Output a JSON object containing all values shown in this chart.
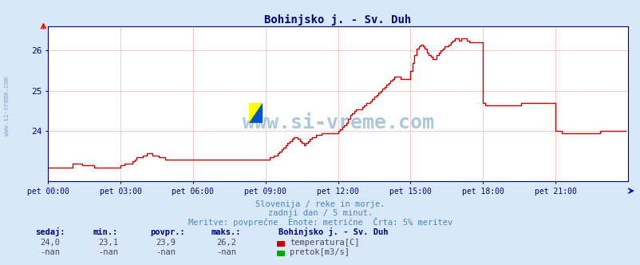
{
  "title": "Bohinjsko j. - Sv. Duh",
  "title_color": "#000080",
  "bg_color": "#d8e8f8",
  "plot_bg_color": "#ffffff",
  "grid_color": "#ffb0b0",
  "axis_color": "#000080",
  "watermark": "www.si-vreme.com",
  "watermark_color": "#3377aa",
  "watermark_alpha": 0.4,
  "xlim": [
    0,
    288
  ],
  "ylim": [
    22.75,
    26.6
  ],
  "yticks": [
    24.0,
    25.0,
    26.0
  ],
  "xtick_labels": [
    "pet 00:00",
    "pet 03:00",
    "pet 06:00",
    "pet 09:00",
    "pet 12:00",
    "pet 15:00",
    "pet 18:00",
    "pet 21:00"
  ],
  "xtick_positions": [
    0,
    36,
    72,
    108,
    144,
    180,
    216,
    252
  ],
  "line_color": "#cc0000",
  "line_width": 1.0,
  "footer_line1": "Slovenija / reke in morje.",
  "footer_line2": "zadnji dan / 5 minut.",
  "footer_line3": "Meritve: povprečne  Enote: metrične  Črta: 5% meritev",
  "footer_color": "#4488bb",
  "table_header": [
    "sedaj:",
    "min.:",
    "povpr.:",
    "maks.:"
  ],
  "table_values": [
    "24,0",
    "23,1",
    "23,9",
    "26,2"
  ],
  "table_nan": [
    "-nan",
    "-nan",
    "-nan",
    "-nan"
  ],
  "station_label": "Bohinjsko j. - Sv. Duh",
  "legend_temp": "temperatura[C]",
  "legend_flow": "pretok[m3/s]",
  "legend_temp_color": "#cc0000",
  "legend_flow_color": "#00aa00",
  "sidebar_color": "#4488bb",
  "sidebar_text": "www.si-vreme.com",
  "temp_data": [
    23.1,
    23.1,
    23.1,
    23.1,
    23.1,
    23.1,
    23.1,
    23.1,
    23.1,
    23.1,
    23.1,
    23.1,
    23.2,
    23.2,
    23.2,
    23.2,
    23.2,
    23.15,
    23.15,
    23.15,
    23.15,
    23.15,
    23.15,
    23.1,
    23.1,
    23.1,
    23.1,
    23.1,
    23.1,
    23.1,
    23.1,
    23.1,
    23.1,
    23.1,
    23.1,
    23.1,
    23.15,
    23.15,
    23.2,
    23.2,
    23.2,
    23.2,
    23.25,
    23.3,
    23.35,
    23.35,
    23.35,
    23.4,
    23.4,
    23.45,
    23.45,
    23.45,
    23.4,
    23.4,
    23.4,
    23.35,
    23.35,
    23.35,
    23.3,
    23.3,
    23.3,
    23.3,
    23.3,
    23.3,
    23.3,
    23.3,
    23.3,
    23.3,
    23.3,
    23.3,
    23.3,
    23.3,
    23.3,
    23.3,
    23.3,
    23.3,
    23.3,
    23.3,
    23.3,
    23.3,
    23.3,
    23.3,
    23.3,
    23.3,
    23.3,
    23.3,
    23.3,
    23.3,
    23.3,
    23.3,
    23.3,
    23.3,
    23.3,
    23.3,
    23.3,
    23.3,
    23.3,
    23.3,
    23.3,
    23.3,
    23.3,
    23.3,
    23.3,
    23.3,
    23.3,
    23.3,
    23.3,
    23.3,
    23.3,
    23.3,
    23.35,
    23.35,
    23.4,
    23.4,
    23.45,
    23.5,
    23.55,
    23.6,
    23.65,
    23.7,
    23.75,
    23.8,
    23.85,
    23.85,
    23.8,
    23.75,
    23.7,
    23.65,
    23.7,
    23.75,
    23.8,
    23.85,
    23.85,
    23.9,
    23.9,
    23.9,
    23.95,
    23.95,
    23.95,
    23.95,
    23.95,
    23.95,
    23.95,
    23.95,
    24.0,
    24.05,
    24.1,
    24.15,
    24.2,
    24.3,
    24.4,
    24.45,
    24.5,
    24.55,
    24.55,
    24.55,
    24.6,
    24.65,
    24.7,
    24.7,
    24.75,
    24.8,
    24.85,
    24.9,
    24.95,
    25.0,
    25.05,
    25.1,
    25.15,
    25.2,
    25.25,
    25.3,
    25.35,
    25.35,
    25.35,
    25.3,
    25.3,
    25.3,
    25.3,
    25.3,
    25.5,
    25.7,
    25.9,
    26.05,
    26.1,
    26.15,
    26.1,
    26.05,
    25.95,
    25.9,
    25.85,
    25.8,
    25.8,
    25.9,
    25.95,
    26.0,
    26.05,
    26.1,
    26.1,
    26.15,
    26.2,
    26.25,
    26.3,
    26.3,
    26.25,
    26.3,
    26.3,
    26.3,
    26.25,
    26.2,
    26.2,
    26.2,
    26.2,
    26.2,
    26.2,
    26.2,
    24.7,
    24.65,
    24.65,
    24.65,
    24.65,
    24.65,
    24.65,
    24.65,
    24.65,
    24.65,
    24.65,
    24.65,
    24.65,
    24.65,
    24.65,
    24.65,
    24.65,
    24.65,
    24.65,
    24.7,
    24.7,
    24.7,
    24.7,
    24.7,
    24.7,
    24.7,
    24.7,
    24.7,
    24.7,
    24.7,
    24.7,
    24.7,
    24.7,
    24.7,
    24.7,
    24.7,
    24.0,
    24.0,
    24.0,
    23.95,
    23.95,
    23.95,
    23.95,
    23.95,
    23.95,
    23.95,
    23.95,
    23.95,
    23.95,
    23.95,
    23.95,
    23.95,
    23.95,
    23.95,
    23.95,
    23.95,
    23.95,
    23.95,
    24.0,
    24.0,
    24.0,
    24.0,
    24.0,
    24.0,
    24.0,
    24.0,
    24.0,
    24.0,
    24.0,
    24.0,
    24.0,
    24.0
  ]
}
